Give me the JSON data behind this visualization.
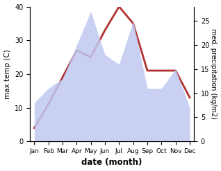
{
  "months": [
    "Jan",
    "Feb",
    "Mar",
    "Apr",
    "May",
    "Jun",
    "Jul",
    "Aug",
    "Sep",
    "Oct",
    "Nov",
    "Dec"
  ],
  "temperature": [
    4,
    11,
    19,
    27,
    25,
    33,
    40,
    35,
    21,
    21,
    21,
    13
  ],
  "precipitation": [
    8,
    11,
    13,
    20,
    27,
    18,
    16,
    25,
    11,
    11,
    15,
    7
  ],
  "temp_color": "#b03030",
  "precip_fill_color": "#c0c8f0",
  "xlabel": "date (month)",
  "ylabel_left": "max temp (C)",
  "ylabel_right": "med. precipitation (kg/m2)",
  "ylim_left": [
    0,
    40
  ],
  "ylim_right": [
    0,
    28
  ],
  "yticks_left": [
    0,
    10,
    20,
    30,
    40
  ],
  "yticks_right": [
    0,
    5,
    10,
    15,
    20,
    25
  ],
  "background_color": "#ffffff"
}
